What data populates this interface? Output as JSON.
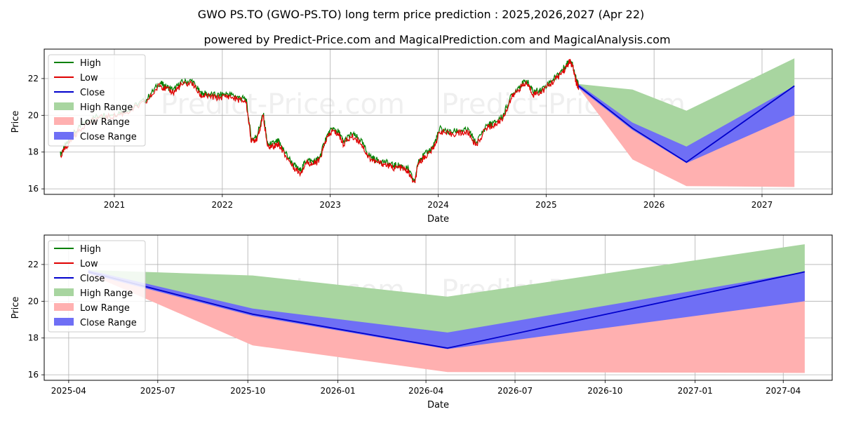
{
  "title": "GWO PS.TO (GWO-PS.TO) long term price prediction : 2025,2026,2027 (Apr 22)",
  "subtitle": "powered by Predict-Price.com and MagicalPrediction.com and MagicalAnalysis.com",
  "watermark": "Predict-Price.com",
  "colors": {
    "high": "#008000",
    "low": "#e00000",
    "close": "#0000cc",
    "high_range": "#a8d5a0",
    "low_range": "#ffb0b0",
    "close_range": "#6f6ff5",
    "grid": "#b0b0b0"
  },
  "legend": {
    "high": "High",
    "low": "Low",
    "close": "Close",
    "high_range": "High Range",
    "low_range": "Low Range",
    "close_range": "Close Range"
  },
  "chart_data": [
    {
      "id": "top",
      "type": "line",
      "xlabel": "Date",
      "ylabel": "Price",
      "xlim": [
        2020.35,
        2027.65
      ],
      "ylim": [
        15.7,
        23.6
      ],
      "x_ticks": [
        2021,
        2022,
        2023,
        2024,
        2025,
        2026,
        2027
      ],
      "x_tick_labels": [
        "2021",
        "2022",
        "2023",
        "2024",
        "2025",
        "2026",
        "2027"
      ],
      "y_ticks": [
        16,
        18,
        20,
        22
      ],
      "y_tick_labels": [
        "16",
        "18",
        "20",
        "22"
      ],
      "history": {
        "x": [
          2020.5,
          2020.55,
          2020.62,
          2020.72,
          2020.85,
          2021.0,
          2021.15,
          2021.3,
          2021.42,
          2021.47,
          2021.55,
          2021.62,
          2021.72,
          2021.8,
          2021.85,
          2021.95,
          2022.05,
          2022.15,
          2022.22,
          2022.27,
          2022.32,
          2022.38,
          2022.42,
          2022.48,
          2022.52,
          2022.56,
          2022.65,
          2022.72,
          2022.78,
          2022.85,
          2022.9,
          2022.96,
          2023.02,
          2023.08,
          2023.12,
          2023.2,
          2023.28,
          2023.35,
          2023.42,
          2023.5,
          2023.58,
          2023.65,
          2023.72,
          2023.78,
          2023.82,
          2023.88,
          2023.95,
          2024.02,
          2024.1,
          2024.2,
          2024.28,
          2024.35,
          2024.45,
          2024.52,
          2024.6,
          2024.68,
          2024.75,
          2024.82,
          2024.88,
          2024.95,
          2025.05,
          2025.12,
          2025.18,
          2025.22,
          2025.25,
          2025.28,
          2025.3
        ],
        "close": [
          17.8,
          18.3,
          18.9,
          19.5,
          19.9,
          20.0,
          20.3,
          20.8,
          21.7,
          21.5,
          21.3,
          21.7,
          21.8,
          21.1,
          21.1,
          21.0,
          21.1,
          20.9,
          20.8,
          18.6,
          18.8,
          20.0,
          18.3,
          18.4,
          18.5,
          18.1,
          17.3,
          16.9,
          17.5,
          17.4,
          17.6,
          18.7,
          19.2,
          19.0,
          18.5,
          18.9,
          18.6,
          17.8,
          17.5,
          17.4,
          17.2,
          17.2,
          17.0,
          16.3,
          17.5,
          17.8,
          18.2,
          19.2,
          19.0,
          19.1,
          19.1,
          18.4,
          19.4,
          19.5,
          19.9,
          21.0,
          21.5,
          21.8,
          21.2,
          21.3,
          21.8,
          22.2,
          22.6,
          23.0,
          22.6,
          21.8,
          21.6
        ]
      },
      "forecast": {
        "x": [
          2025.3,
          2025.8,
          2026.3,
          2027.3
        ],
        "close": [
          21.6,
          19.3,
          17.45,
          21.6
        ],
        "high": [
          21.7,
          21.4,
          20.25,
          23.1
        ],
        "low": [
          21.5,
          17.6,
          16.15,
          16.1
        ],
        "close_hi": [
          21.7,
          19.6,
          18.3,
          21.6
        ],
        "close_lo": [
          21.5,
          19.2,
          17.4,
          20.0
        ]
      }
    },
    {
      "id": "bottom",
      "type": "line",
      "xlabel": "Date",
      "ylabel": "Price",
      "xlim": [
        -25,
        780
      ],
      "ylim": [
        15.7,
        23.6
      ],
      "x_ticks": [
        0,
        91,
        183,
        275,
        365,
        456,
        548,
        640,
        730
      ],
      "x_tick_labels": [
        "2025-04",
        "2025-07",
        "2025-10",
        "2026-01",
        "2026-04",
        "2026-07",
        "2026-10",
        "2027-01",
        "2027-04"
      ],
      "y_ticks": [
        16,
        18,
        20,
        22
      ],
      "y_tick_labels": [
        "16",
        "18",
        "20",
        "22"
      ],
      "forecast": {
        "x": [
          20,
          188,
          387,
          752
        ],
        "close": [
          21.6,
          19.3,
          17.45,
          21.6
        ],
        "high": [
          21.7,
          21.4,
          20.25,
          23.1
        ],
        "low": [
          21.5,
          17.6,
          16.15,
          16.1
        ],
        "close_hi": [
          21.7,
          19.6,
          18.3,
          21.6
        ],
        "close_lo": [
          21.5,
          19.2,
          17.4,
          20.0
        ]
      }
    }
  ]
}
